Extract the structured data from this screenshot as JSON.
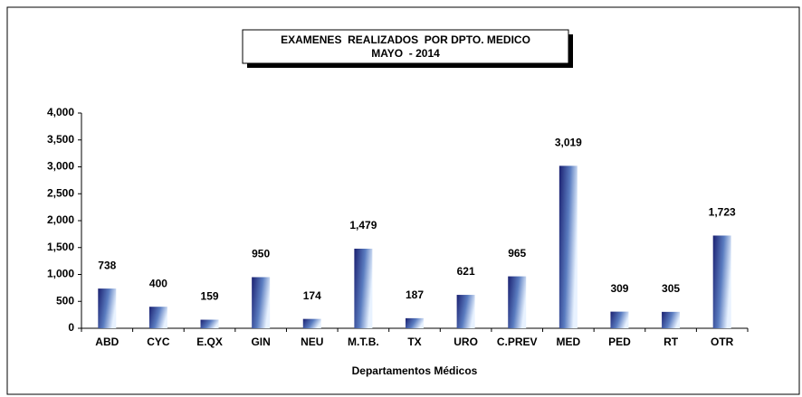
{
  "chart_data": {
    "type": "bar",
    "title": "EXAMENES  REALIZADOS  POR DPTO. MEDICO",
    "subtitle": "MAYO  - 2014",
    "x_label": "Departamentos Médicos",
    "categories": [
      "ABD",
      "CYC",
      "E.QX",
      "GIN",
      "NEU",
      "M.T.B.",
      "TX",
      "URO",
      "C.PREV",
      "MED",
      "PED",
      "RT",
      "OTR"
    ],
    "values": [
      738,
      400,
      159,
      950,
      174,
      1479,
      187,
      621,
      965,
      3019,
      309,
      305,
      1723
    ],
    "value_labels": [
      "738",
      "400",
      "159",
      "950",
      "174",
      "1,479",
      "187",
      "621",
      "965",
      "3,019",
      "309",
      "305",
      "1,723"
    ],
    "color": "#1a1f70",
    "ylim": [
      0,
      4000
    ],
    "yticks": [
      0,
      500,
      {
        "value": 1000,
        "label": "1,000"
      },
      {
        "value": 1500,
        "label": "1,500"
      },
      {
        "value": 2000,
        "label": "2,000"
      },
      {
        "value": 2500,
        "label": "2,500"
      },
      {
        "value": 3000,
        "label": "3,000"
      },
      {
        "value": 3500,
        "label": "3,500"
      },
      {
        "value": 4000,
        "label": "4,000"
      }
    ],
    "grid": false
  }
}
